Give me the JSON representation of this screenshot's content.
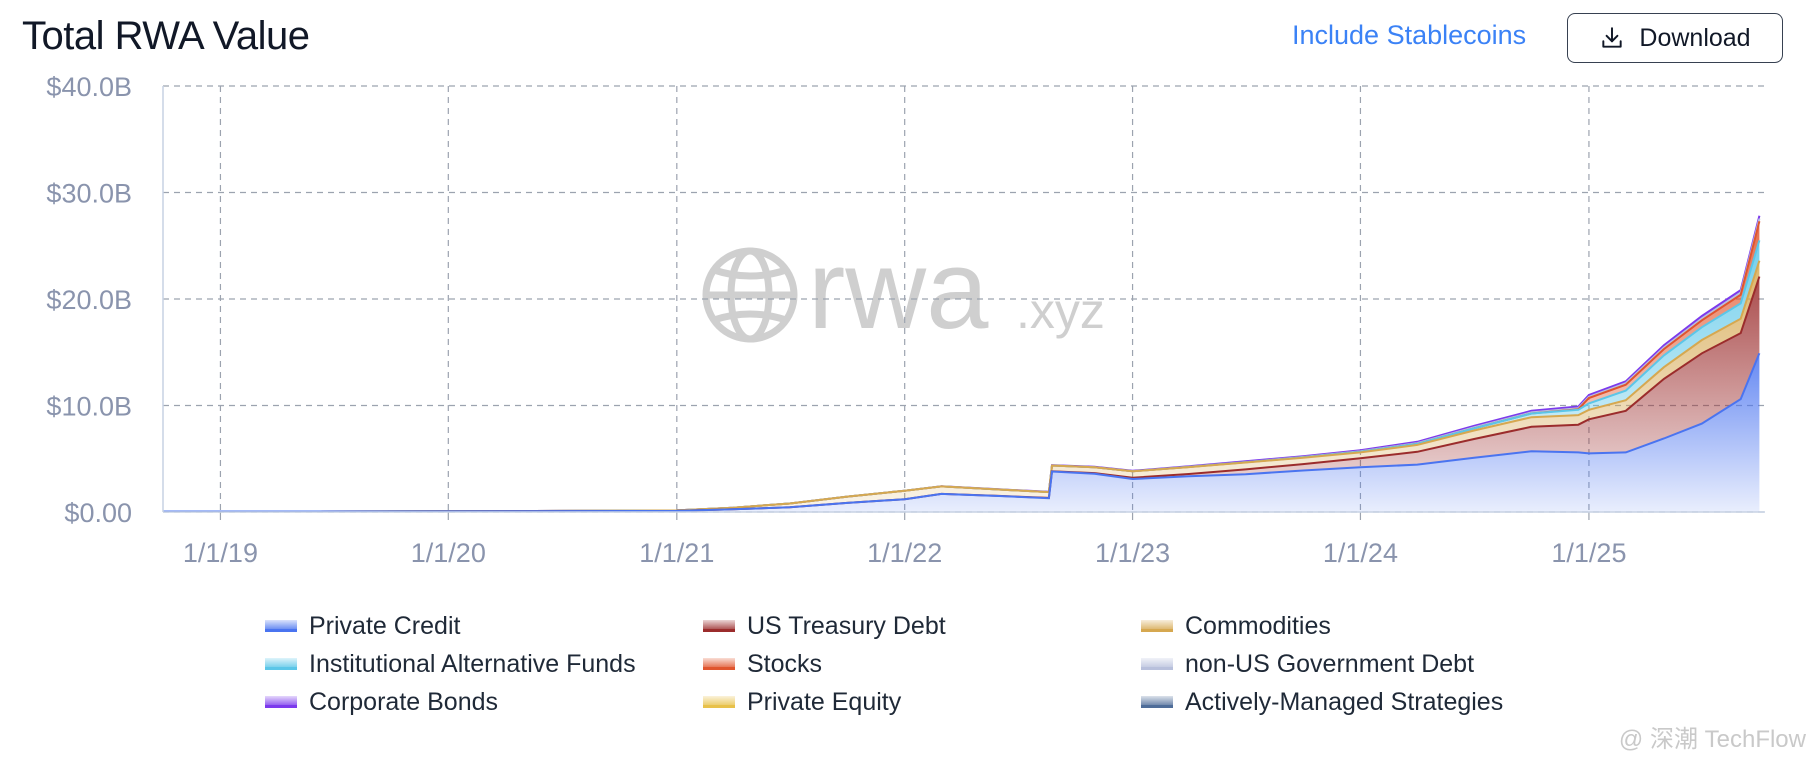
{
  "header": {
    "title": "Total RWA Value",
    "toggle_label": "Include Stablecoins",
    "download_label": "Download"
  },
  "watermark": {
    "brand": "rwa",
    "suffix": ".xyz"
  },
  "credit": "@ 深潮 TechFlow",
  "chart_data": {
    "type": "area",
    "stacked": true,
    "title": "Total RWA Value",
    "xlabel": "",
    "ylabel": "",
    "x_axis": {
      "min": "2018-10-01",
      "max": "2025-10-10",
      "tick_dates": [
        "2019-01-01",
        "2020-01-01",
        "2021-01-01",
        "2022-01-01",
        "2023-01-01",
        "2024-01-01",
        "2025-01-01"
      ],
      "tick_labels": [
        "1/1/19",
        "1/1/20",
        "1/1/21",
        "1/1/22",
        "1/1/23",
        "1/1/24",
        "1/1/25"
      ]
    },
    "y_axis": {
      "min": 0,
      "max": 40,
      "unit": "billion USD",
      "tick_values": [
        0,
        10,
        20,
        30,
        40
      ],
      "tick_labels": [
        "$0.00",
        "$10.0B",
        "$20.0B",
        "$30.0B",
        "$40.0B"
      ]
    },
    "grid": true,
    "grid_style": "dashed",
    "legend_position": "bottom",
    "dates": [
      "2018-10-01",
      "2019-06-01",
      "2020-01-01",
      "2020-07-01",
      "2021-01-01",
      "2021-04-01",
      "2021-07-01",
      "2021-10-01",
      "2022-01-01",
      "2022-03-01",
      "2022-06-01",
      "2022-08-20",
      "2022-08-25",
      "2022-11-01",
      "2023-01-01",
      "2023-04-01",
      "2023-07-01",
      "2023-10-01",
      "2024-01-01",
      "2024-04-01",
      "2024-07-01",
      "2024-10-01",
      "2024-12-15",
      "2025-01-01",
      "2025-03-01",
      "2025-05-01",
      "2025-07-01",
      "2025-09-01",
      "2025-10-01"
    ],
    "series": [
      {
        "name": "Private Credit",
        "color": "#4a74f0",
        "values": [
          0.05,
          0.05,
          0.06,
          0.08,
          0.1,
          0.25,
          0.45,
          0.85,
          1.2,
          1.7,
          1.5,
          1.3,
          3.8,
          3.6,
          3.1,
          3.35,
          3.55,
          3.9,
          4.2,
          4.45,
          5.1,
          5.7,
          5.6,
          5.5,
          5.6,
          6.9,
          8.3,
          10.6,
          14.9
        ]
      },
      {
        "name": "US Treasury Debt",
        "color": "#9b2c2c",
        "values": [
          0,
          0,
          0,
          0,
          0,
          0,
          0,
          0,
          0,
          0,
          0.01,
          0.02,
          0.02,
          0.05,
          0.12,
          0.22,
          0.45,
          0.6,
          0.85,
          1.2,
          1.75,
          2.3,
          2.6,
          3.2,
          3.9,
          5.6,
          6.6,
          6.2,
          7.2
        ]
      },
      {
        "name": "Commodities",
        "color": "#d6a850",
        "values": [
          0,
          0,
          0.01,
          0.02,
          0.05,
          0.15,
          0.35,
          0.6,
          0.8,
          0.7,
          0.6,
          0.55,
          0.55,
          0.55,
          0.6,
          0.65,
          0.65,
          0.6,
          0.55,
          0.65,
          0.8,
          0.9,
          0.9,
          0.9,
          1.0,
          1.1,
          1.25,
          1.35,
          1.5
        ]
      },
      {
        "name": "Institutional Alternative Funds",
        "color": "#5bc6e8",
        "values": [
          0,
          0,
          0,
          0,
          0,
          0,
          0,
          0,
          0,
          0,
          0,
          0,
          0,
          0,
          0,
          0.01,
          0.02,
          0.03,
          0.05,
          0.1,
          0.2,
          0.35,
          0.5,
          0.6,
          0.9,
          1.1,
          1.2,
          1.45,
          1.9
        ]
      },
      {
        "name": "Stocks",
        "color": "#e0552e",
        "values": [
          0,
          0,
          0,
          0,
          0,
          0,
          0,
          0,
          0,
          0,
          0,
          0,
          0,
          0,
          0,
          0,
          0,
          0,
          0,
          0,
          0,
          0,
          0.05,
          0.5,
          0.55,
          0.6,
          0.65,
          0.8,
          1.8
        ]
      },
      {
        "name": "non-US Government Debt",
        "color": "#b8c0dc",
        "values": [
          0,
          0,
          0,
          0,
          0,
          0,
          0,
          0,
          0,
          0,
          0,
          0,
          0,
          0,
          0,
          0.01,
          0.02,
          0.03,
          0.05,
          0.07,
          0.09,
          0.1,
          0.1,
          0.12,
          0.14,
          0.15,
          0.18,
          0.2,
          0.25
        ]
      },
      {
        "name": "Corporate Bonds",
        "color": "#7c3aed",
        "values": [
          0,
          0,
          0,
          0,
          0,
          0,
          0,
          0,
          0,
          0.01,
          0.02,
          0.03,
          0.03,
          0.04,
          0.05,
          0.06,
          0.07,
          0.08,
          0.1,
          0.12,
          0.14,
          0.15,
          0.16,
          0.17,
          0.18,
          0.2,
          0.22,
          0.24,
          0.26
        ]
      },
      {
        "name": "Private Equity",
        "color": "#e8c14a",
        "values": [
          0,
          0,
          0,
          0,
          0,
          0,
          0,
          0,
          0,
          0,
          0,
          0,
          0,
          0,
          0,
          0,
          0,
          0,
          0,
          0,
          0,
          0,
          0,
          0,
          0,
          0,
          0,
          0,
          0
        ]
      },
      {
        "name": "Actively-Managed Strategies",
        "color": "#4f6d99",
        "values": [
          0,
          0,
          0,
          0,
          0,
          0,
          0,
          0,
          0,
          0,
          0,
          0,
          0,
          0,
          0,
          0,
          0,
          0,
          0,
          0,
          0,
          0,
          0,
          0,
          0,
          0,
          0,
          0,
          0
        ]
      }
    ]
  }
}
